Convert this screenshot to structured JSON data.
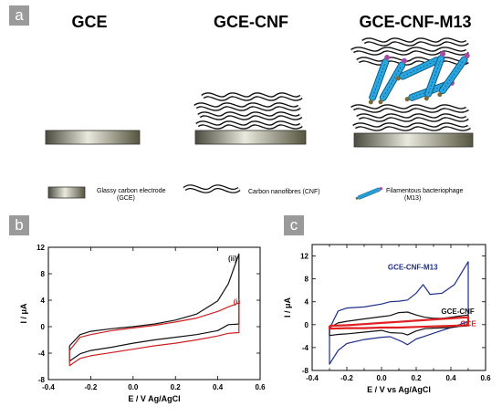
{
  "panels": {
    "a": "a",
    "b": "b",
    "c": "c"
  },
  "panel_a": {
    "titles": [
      "GCE",
      "GCE-CNF",
      "GCE-CNF-M13"
    ],
    "legend": [
      {
        "icon": "glassy-carbon-electrode",
        "line1": "Glassy carbon electrode",
        "line2": "(GCE)"
      },
      {
        "icon": "carbon-nanofibres",
        "line1": "Carbon nanofibres (CNF)",
        "line2": ""
      },
      {
        "icon": "filamentous-bacteriophage",
        "line1": "Filamentous bacteriophage",
        "line2": "(M13)"
      }
    ],
    "colors": {
      "electrode": "#7c7a6a",
      "fibre": "#111111",
      "phage": "#2aa7e0",
      "phage_head": "#a64ca6"
    }
  },
  "chart_data": [
    {
      "type": "line",
      "panel": "b",
      "xlabel": "E / V Ag/AgCl",
      "ylabel": "I / μA",
      "xlim": [
        -0.4,
        0.6
      ],
      "ylim": [
        -8,
        12
      ],
      "xticks": [
        -0.4,
        -0.2,
        0.0,
        0.2,
        0.4,
        0.6
      ],
      "xtick_labels": [
        "-0.4",
        "-0.2",
        "0.0",
        "0.2",
        "0.4",
        "0.6"
      ],
      "yticks": [
        -8,
        -4,
        0,
        4,
        8,
        12
      ],
      "ytick_labels": [
        "-8",
        "-4",
        "0",
        "4",
        "8",
        "12"
      ],
      "grid": false,
      "annotations": [
        {
          "text": "(ii)",
          "x": 0.47,
          "y": 9.9,
          "color": "#222222"
        },
        {
          "text": "(i)",
          "x": 0.49,
          "y": 3.4,
          "color": "#d02020"
        }
      ],
      "series": [
        {
          "color": "#111111",
          "points": [
            [
              -0.3,
              -2.9
            ],
            [
              -0.25,
              -1.2
            ],
            [
              -0.2,
              -0.7
            ],
            [
              -0.1,
              -0.3
            ],
            [
              0.0,
              0.0
            ],
            [
              0.1,
              0.4
            ],
            [
              0.2,
              1.0
            ],
            [
              0.3,
              1.9
            ],
            [
              0.4,
              3.9
            ],
            [
              0.45,
              6.5
            ],
            [
              0.5,
              11.0
            ],
            [
              0.5,
              0.4
            ],
            [
              0.45,
              0.3
            ],
            [
              0.4,
              -0.6
            ],
            [
              0.3,
              -1.2
            ],
            [
              0.2,
              -1.6
            ],
            [
              0.1,
              -2.0
            ],
            [
              0.0,
              -2.5
            ],
            [
              -0.1,
              -3.1
            ],
            [
              -0.2,
              -3.6
            ],
            [
              -0.25,
              -4.1
            ],
            [
              -0.3,
              -5.2
            ],
            [
              -0.3,
              -2.9
            ]
          ]
        },
        {
          "color": "#d02020",
          "points": [
            [
              -0.3,
              -3.6
            ],
            [
              -0.25,
              -1.6
            ],
            [
              -0.2,
              -1.2
            ],
            [
              -0.1,
              -0.6
            ],
            [
              0.0,
              -0.2
            ],
            [
              0.1,
              0.2
            ],
            [
              0.2,
              0.7
            ],
            [
              0.3,
              1.3
            ],
            [
              0.4,
              2.3
            ],
            [
              0.45,
              3.0
            ],
            [
              0.5,
              3.6
            ],
            [
              0.5,
              -0.9
            ],
            [
              0.45,
              -1.0
            ],
            [
              0.4,
              -1.4
            ],
            [
              0.3,
              -2.0
            ],
            [
              0.2,
              -2.5
            ],
            [
              0.1,
              -2.9
            ],
            [
              0.0,
              -3.4
            ],
            [
              -0.1,
              -3.9
            ],
            [
              -0.2,
              -4.4
            ],
            [
              -0.25,
              -4.8
            ],
            [
              -0.3,
              -5.9
            ],
            [
              -0.3,
              -3.6
            ]
          ]
        }
      ]
    },
    {
      "type": "line",
      "panel": "c",
      "xlabel": "E / V vs Ag/AgCl",
      "ylabel": "I / μA",
      "xlim": [
        -0.4,
        0.6
      ],
      "ylim": [
        -8,
        14
      ],
      "xticks": [
        -0.4,
        -0.3,
        -0.2,
        -0.1,
        0.0,
        0.1,
        0.2,
        0.3,
        0.4,
        0.5,
        0.6
      ],
      "xtick_labels": [
        "-0.4",
        "",
        "-0.2",
        "",
        "0.0",
        "",
        "0.2",
        "",
        "0.4",
        "",
        "0.6"
      ],
      "yticks": [
        -8,
        -4,
        0,
        4,
        8,
        12
      ],
      "ytick_labels": [
        "-8",
        "-4",
        "0",
        "4",
        "8",
        "12"
      ],
      "grid": false,
      "annotations": [
        {
          "text": "GCE-CNF-M13",
          "x": 0.18,
          "y": 9.6,
          "color": "#1f2f8a"
        },
        {
          "text": "GCE-CNF",
          "x": 0.44,
          "y": 1.9,
          "color": "#111111"
        },
        {
          "text": "GCE",
          "x": 0.5,
          "y": -0.3,
          "color": "#d02020"
        }
      ],
      "series": [
        {
          "color": "#1f2f8a",
          "points": [
            [
              -0.3,
              -0.7
            ],
            [
              -0.25,
              2.4
            ],
            [
              -0.2,
              2.9
            ],
            [
              -0.1,
              3.1
            ],
            [
              0.0,
              3.6
            ],
            [
              0.05,
              4.0
            ],
            [
              0.1,
              4.1
            ],
            [
              0.15,
              4.3
            ],
            [
              0.2,
              5.5
            ],
            [
              0.24,
              7.0
            ],
            [
              0.28,
              5.3
            ],
            [
              0.35,
              5.5
            ],
            [
              0.42,
              7.0
            ],
            [
              0.47,
              9.5
            ],
            [
              0.5,
              11.0
            ],
            [
              0.5,
              0.6
            ],
            [
              0.45,
              0.0
            ],
            [
              0.4,
              -0.5
            ],
            [
              0.35,
              -1.0
            ],
            [
              0.3,
              -1.5
            ],
            [
              0.25,
              -2.0
            ],
            [
              0.2,
              -2.5
            ],
            [
              0.15,
              -3.5
            ],
            [
              0.12,
              -3.0
            ],
            [
              0.05,
              -2.1
            ],
            [
              0.0,
              -2.2
            ],
            [
              -0.1,
              -2.6
            ],
            [
              -0.2,
              -3.3
            ],
            [
              -0.25,
              -4.5
            ],
            [
              -0.3,
              -6.9
            ],
            [
              -0.3,
              -0.7
            ]
          ]
        },
        {
          "color": "#111111",
          "points": [
            [
              -0.3,
              -0.5
            ],
            [
              -0.25,
              0.3
            ],
            [
              -0.2,
              0.6
            ],
            [
              -0.1,
              1.0
            ],
            [
              0.0,
              1.4
            ],
            [
              0.05,
              1.6
            ],
            [
              0.1,
              2.1
            ],
            [
              0.15,
              2.2
            ],
            [
              0.2,
              1.7
            ],
            [
              0.25,
              1.3
            ],
            [
              0.3,
              1.1
            ],
            [
              0.35,
              1.1
            ],
            [
              0.4,
              1.3
            ],
            [
              0.45,
              1.5
            ],
            [
              0.5,
              1.7
            ],
            [
              0.5,
              -0.2
            ],
            [
              0.45,
              -0.3
            ],
            [
              0.4,
              -0.5
            ],
            [
              0.3,
              -0.6
            ],
            [
              0.25,
              -0.7
            ],
            [
              0.2,
              -1.1
            ],
            [
              0.15,
              -1.8
            ],
            [
              0.12,
              -1.5
            ],
            [
              0.05,
              -1.4
            ],
            [
              0.0,
              -1.0
            ],
            [
              -0.1,
              -1.3
            ],
            [
              -0.2,
              -1.6
            ],
            [
              -0.25,
              -1.7
            ],
            [
              -0.3,
              -1.9
            ],
            [
              -0.3,
              -0.5
            ]
          ]
        },
        {
          "color": "#e02020",
          "width": 2.2,
          "points": [
            [
              -0.3,
              -0.2
            ],
            [
              -0.2,
              -0.1
            ],
            [
              -0.1,
              0.1
            ],
            [
              0.0,
              0.3
            ],
            [
              0.1,
              0.5
            ],
            [
              0.2,
              0.7
            ],
            [
              0.3,
              0.9
            ],
            [
              0.4,
              1.1
            ],
            [
              0.5,
              1.3
            ],
            [
              0.5,
              -0.1
            ],
            [
              0.4,
              -0.2
            ],
            [
              0.3,
              -0.3
            ],
            [
              0.2,
              -0.4
            ],
            [
              0.1,
              -0.5
            ],
            [
              0.0,
              -0.5
            ],
            [
              -0.1,
              -0.6
            ],
            [
              -0.2,
              -0.6
            ],
            [
              -0.3,
              -0.7
            ],
            [
              -0.3,
              -0.2
            ]
          ]
        }
      ]
    }
  ]
}
